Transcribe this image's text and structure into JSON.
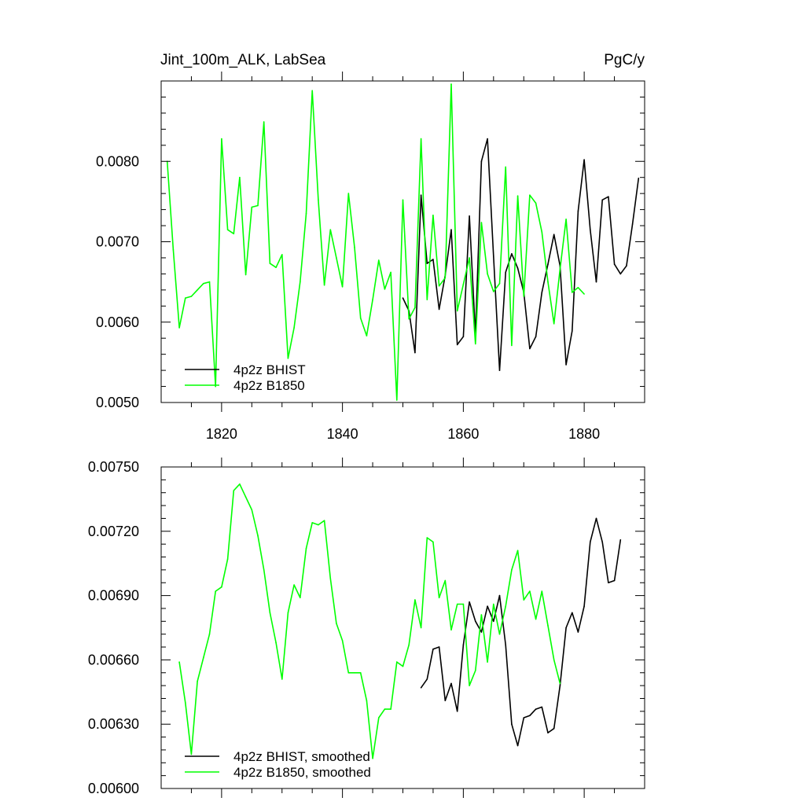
{
  "figure": {
    "title_left": "Jint_100m_ALK, LabSea",
    "title_right": "PgC/y"
  },
  "colors": {
    "bhist": "#000000",
    "b1850": "#00ff00"
  },
  "chart_data": [
    {
      "type": "line",
      "title": "Jint_100m_ALK, LabSea",
      "units": "PgC/y",
      "xlim": [
        1810,
        1890
      ],
      "ylim": [
        0.005,
        0.009
      ],
      "x_ticks": [
        1820,
        1840,
        1860,
        1880
      ],
      "x_tick_labels": [
        "1820",
        "1840",
        "1860",
        "1880"
      ],
      "y_ticks": [
        0.005,
        0.006,
        0.007,
        0.008
      ],
      "y_tick_labels": [
        "0.0050",
        "0.0060",
        "0.0070",
        "0.0080"
      ],
      "grid": false,
      "legend_position": "bottom-left",
      "series": [
        {
          "name": "4p2z BHIST",
          "color": "#000000",
          "x": [
            1850,
            1851,
            1852,
            1853,
            1854,
            1855,
            1856,
            1857,
            1858,
            1859,
            1860,
            1861,
            1862,
            1863,
            1864,
            1865,
            1866,
            1867,
            1868,
            1869,
            1870,
            1871,
            1872,
            1873,
            1874,
            1875,
            1876,
            1877,
            1878,
            1879,
            1880,
            1881,
            1882,
            1883,
            1884,
            1885,
            1886,
            1887,
            1888,
            1889
          ],
          "y": [
            0.0063,
            0.00614,
            0.00562,
            0.00758,
            0.00673,
            0.00678,
            0.00616,
            0.00658,
            0.00715,
            0.00572,
            0.00582,
            0.00732,
            0.00584,
            0.008,
            0.00828,
            0.00682,
            0.0054,
            0.00662,
            0.00685,
            0.00667,
            0.00637,
            0.00567,
            0.00582,
            0.00637,
            0.00672,
            0.00709,
            0.0067,
            0.00547,
            0.00589,
            0.00738,
            0.00802,
            0.00715,
            0.0065,
            0.00752,
            0.00756,
            0.00672,
            0.0066,
            0.0067,
            0.00722,
            0.00779
          ]
        },
        {
          "name": "4p2z B1850",
          "color": "#00ff00",
          "x": [
            1811,
            1812,
            1813,
            1814,
            1815,
            1816,
            1817,
            1818,
            1819,
            1820,
            1821,
            1822,
            1823,
            1824,
            1825,
            1826,
            1827,
            1828,
            1829,
            1830,
            1831,
            1832,
            1833,
            1834,
            1835,
            1836,
            1837,
            1838,
            1839,
            1840,
            1841,
            1842,
            1843,
            1844,
            1845,
            1846,
            1847,
            1848,
            1849,
            1850,
            1851,
            1852,
            1853,
            1854,
            1855,
            1856,
            1857,
            1858,
            1859,
            1860,
            1861,
            1862,
            1863,
            1864,
            1865,
            1866,
            1867,
            1868,
            1869,
            1870,
            1871,
            1872,
            1873,
            1874,
            1875,
            1876,
            1877,
            1878,
            1879,
            1880
          ],
          "y": [
            0.008,
            0.0069,
            0.00593,
            0.0063,
            0.00632,
            0.0064,
            0.00648,
            0.0065,
            0.0052,
            0.00828,
            0.00715,
            0.0071,
            0.0078,
            0.00659,
            0.00743,
            0.00745,
            0.00849,
            0.00673,
            0.00668,
            0.00684,
            0.00555,
            0.00593,
            0.0065,
            0.00735,
            0.00888,
            0.00752,
            0.00646,
            0.00715,
            0.0068,
            0.00644,
            0.0076,
            0.00693,
            0.00605,
            0.00583,
            0.00628,
            0.00677,
            0.00641,
            0.00662,
            0.00503,
            0.00752,
            0.00604,
            0.00618,
            0.00828,
            0.00628,
            0.00733,
            0.00645,
            0.00655,
            0.00896,
            0.00614,
            0.00647,
            0.0068,
            0.00573,
            0.00724,
            0.0066,
            0.00638,
            0.00648,
            0.00793,
            0.00571,
            0.00757,
            0.00632,
            0.00758,
            0.00748,
            0.00712,
            0.0065,
            0.00598,
            0.00666,
            0.00728,
            0.00637,
            0.00643,
            0.00635
          ]
        }
      ]
    },
    {
      "type": "line",
      "xlim": [
        1810,
        1890
      ],
      "ylim": [
        0.006,
        0.0075
      ],
      "x_ticks": [
        1820,
        1840,
        1860,
        1880
      ],
      "x_tick_labels": [],
      "y_ticks": [
        0.006,
        0.0063,
        0.0066,
        0.0069,
        0.0072,
        0.0075
      ],
      "y_tick_labels": [
        "0.00600",
        "0.00630",
        "0.00660",
        "0.00690",
        "0.00720",
        "0.00750"
      ],
      "grid": false,
      "legend_position": "bottom-left",
      "series": [
        {
          "name": "4p2z BHIST, smoothed",
          "color": "#000000",
          "x": [
            1853,
            1854,
            1855,
            1856,
            1857,
            1858,
            1859,
            1860,
            1861,
            1862,
            1863,
            1864,
            1865,
            1866,
            1867,
            1868,
            1869,
            1870,
            1871,
            1872,
            1873,
            1874,
            1875,
            1876,
            1877,
            1878,
            1879,
            1880,
            1881,
            1882,
            1883,
            1884,
            1885,
            1886
          ],
          "y": [
            0.00647,
            0.00651,
            0.00665,
            0.00666,
            0.00641,
            0.00649,
            0.00636,
            0.00667,
            0.00687,
            0.00678,
            0.00673,
            0.00685,
            0.00678,
            0.0069,
            0.00667,
            0.0063,
            0.0062,
            0.00633,
            0.00634,
            0.00637,
            0.00638,
            0.00626,
            0.00628,
            0.00648,
            0.00675,
            0.00682,
            0.00673,
            0.00685,
            0.00715,
            0.00726,
            0.00715,
            0.00696,
            0.00697,
            0.00716
          ]
        },
        {
          "name": "4p2z B1850, smoothed",
          "color": "#00ff00",
          "x": [
            1813,
            1814,
            1815,
            1816,
            1817,
            1818,
            1819,
            1820,
            1821,
            1822,
            1823,
            1824,
            1825,
            1826,
            1827,
            1828,
            1829,
            1830,
            1831,
            1832,
            1833,
            1834,
            1835,
            1836,
            1837,
            1838,
            1839,
            1840,
            1841,
            1842,
            1843,
            1844,
            1845,
            1846,
            1847,
            1848,
            1849,
            1850,
            1851,
            1852,
            1853,
            1854,
            1855,
            1856,
            1857,
            1858,
            1859,
            1860,
            1861,
            1862,
            1863,
            1864,
            1865,
            1866,
            1867,
            1868,
            1869,
            1870,
            1871,
            1872,
            1873,
            1874,
            1875,
            1876
          ],
          "y": [
            0.00659,
            0.0064,
            0.00616,
            0.0065,
            0.00661,
            0.00672,
            0.00692,
            0.00694,
            0.00707,
            0.00739,
            0.00742,
            0.00736,
            0.0073,
            0.00718,
            0.00702,
            0.00682,
            0.00668,
            0.00651,
            0.00682,
            0.00695,
            0.00689,
            0.00712,
            0.00724,
            0.00723,
            0.00725,
            0.00698,
            0.00677,
            0.00669,
            0.00654,
            0.00654,
            0.00654,
            0.00641,
            0.00614,
            0.00633,
            0.00637,
            0.00637,
            0.00659,
            0.00657,
            0.00667,
            0.00688,
            0.00675,
            0.00717,
            0.00715,
            0.00689,
            0.00697,
            0.00674,
            0.00686,
            0.00686,
            0.00648,
            0.00655,
            0.00681,
            0.00659,
            0.00686,
            0.00672,
            0.00685,
            0.00702,
            0.00711,
            0.00688,
            0.00692,
            0.00679,
            0.00692,
            0.00676,
            0.0066,
            0.00649
          ]
        }
      ]
    }
  ]
}
